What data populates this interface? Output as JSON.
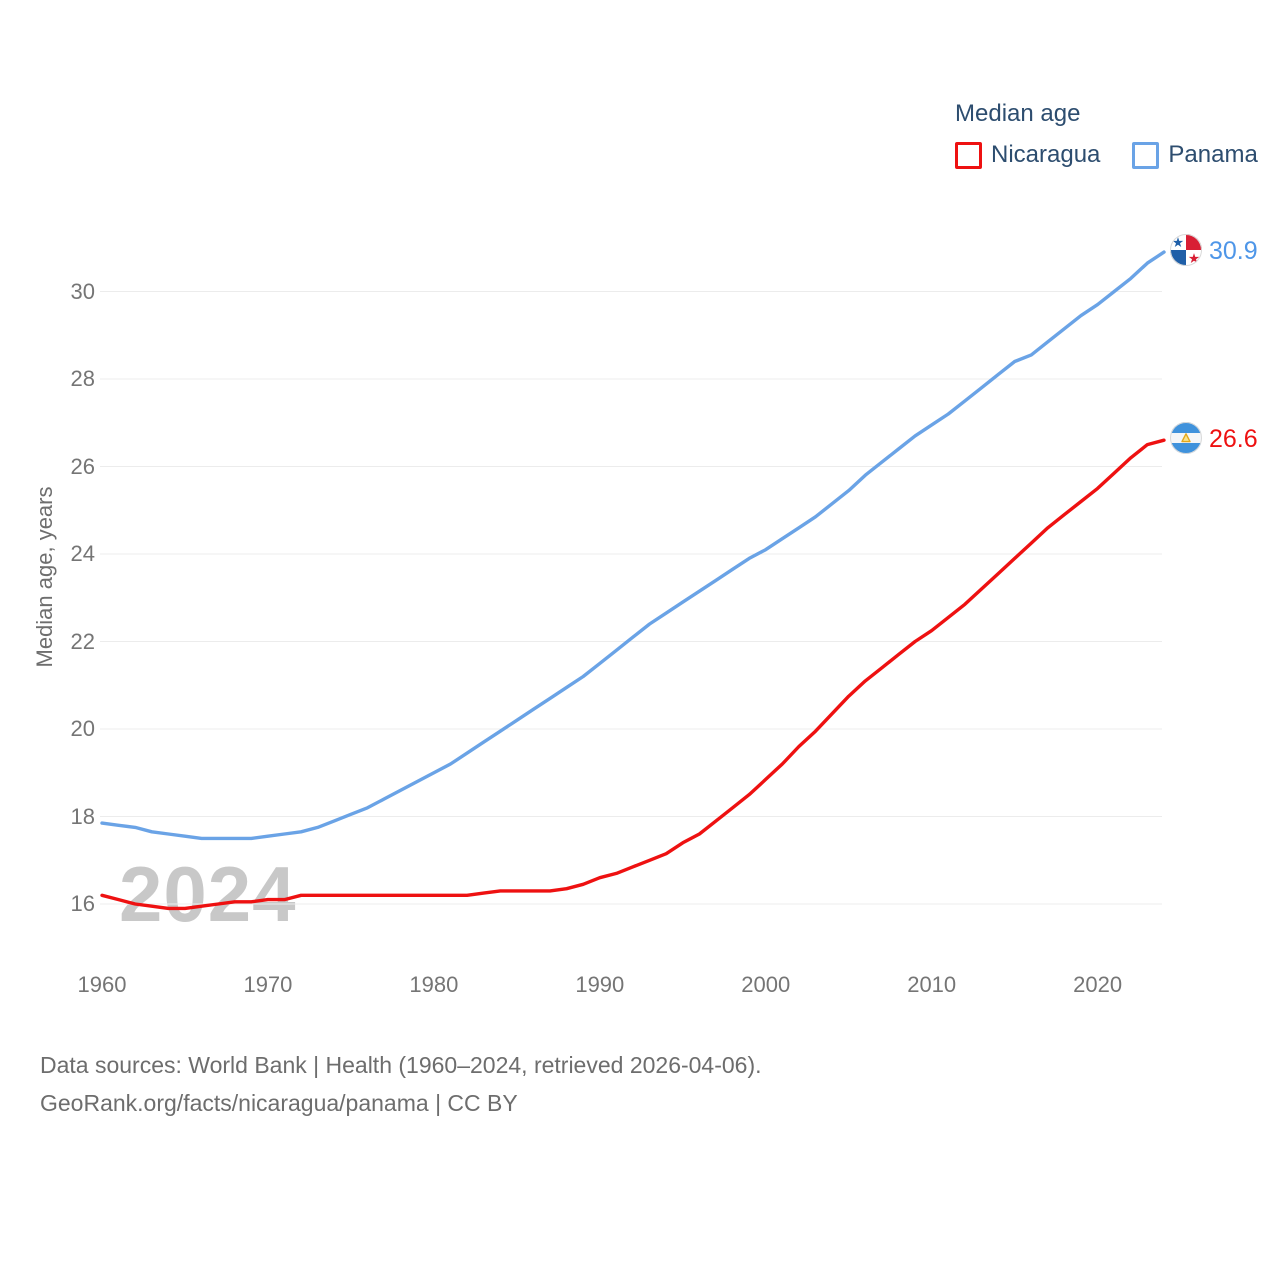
{
  "legend": {
    "title": "Median age",
    "items": [
      {
        "label": "Nicaragua",
        "color": "#ee1111"
      },
      {
        "label": "Panama",
        "color": "#6aa3e6"
      }
    ]
  },
  "y_axis": {
    "label": "Median age, years",
    "ticks": [
      30,
      28,
      26,
      24,
      22,
      20,
      18,
      16
    ]
  },
  "x_axis": {
    "ticks": [
      1960,
      1970,
      1980,
      1990,
      2000,
      2010,
      2020
    ]
  },
  "watermark": "2024",
  "end_labels": {
    "panama": {
      "value": "30.9",
      "color": "#4e96e8"
    },
    "nicaragua": {
      "value": "26.6",
      "color": "#ee1111"
    }
  },
  "footer": {
    "line1": "Data sources: World Bank | Health (1960–2024, retrieved 2026-04-06).",
    "line2": "GeoRank.org/facts/nicaragua/panama | CC BY"
  },
  "chart_data": {
    "type": "line",
    "title": "Median age",
    "xlabel": "",
    "ylabel": "Median age, years",
    "ylim": [
      15.5,
      31.5
    ],
    "xlim": [
      1960,
      2024
    ],
    "grid": "horizontal-only",
    "legend_position": "top-right",
    "x": [
      1960,
      1961,
      1962,
      1963,
      1964,
      1965,
      1966,
      1967,
      1968,
      1969,
      1970,
      1971,
      1972,
      1973,
      1974,
      1975,
      1976,
      1977,
      1978,
      1979,
      1980,
      1981,
      1982,
      1983,
      1984,
      1985,
      1986,
      1987,
      1988,
      1989,
      1990,
      1991,
      1992,
      1993,
      1994,
      1995,
      1996,
      1997,
      1998,
      1999,
      2000,
      2001,
      2002,
      2003,
      2004,
      2005,
      2006,
      2007,
      2008,
      2009,
      2010,
      2011,
      2012,
      2013,
      2014,
      2015,
      2016,
      2017,
      2018,
      2019,
      2020,
      2021,
      2022,
      2023,
      2024
    ],
    "series": [
      {
        "name": "Nicaragua",
        "color": "#ee1111",
        "end_label": "26.6",
        "values": [
          16.2,
          16.1,
          16.0,
          15.95,
          15.9,
          15.9,
          15.95,
          16.0,
          16.05,
          16.05,
          16.1,
          16.1,
          16.2,
          16.2,
          16.2,
          16.2,
          16.2,
          16.2,
          16.2,
          16.2,
          16.2,
          16.2,
          16.2,
          16.25,
          16.3,
          16.3,
          16.3,
          16.3,
          16.35,
          16.45,
          16.6,
          16.7,
          16.85,
          17.0,
          17.15,
          17.4,
          17.6,
          17.9,
          18.2,
          18.5,
          18.85,
          19.2,
          19.6,
          19.95,
          20.35,
          20.75,
          21.1,
          21.4,
          21.7,
          22.0,
          22.25,
          22.55,
          22.85,
          23.2,
          23.55,
          23.9,
          24.25,
          24.6,
          24.9,
          25.2,
          25.5,
          25.85,
          26.2,
          26.5,
          26.6
        ]
      },
      {
        "name": "Panama",
        "color": "#6aa3e6",
        "end_label": "30.9",
        "values": [
          17.85,
          17.8,
          17.75,
          17.65,
          17.6,
          17.55,
          17.5,
          17.5,
          17.5,
          17.5,
          17.55,
          17.6,
          17.65,
          17.75,
          17.9,
          18.05,
          18.2,
          18.4,
          18.6,
          18.8,
          19.0,
          19.2,
          19.45,
          19.7,
          19.95,
          20.2,
          20.45,
          20.7,
          20.95,
          21.2,
          21.5,
          21.8,
          22.1,
          22.4,
          22.65,
          22.9,
          23.15,
          23.4,
          23.65,
          23.9,
          24.1,
          24.35,
          24.6,
          24.85,
          25.15,
          25.45,
          25.8,
          26.1,
          26.4,
          26.7,
          26.95,
          27.2,
          27.5,
          27.8,
          28.1,
          28.4,
          28.55,
          28.85,
          29.15,
          29.45,
          29.7,
          30.0,
          30.3,
          30.65,
          30.9
        ]
      }
    ]
  }
}
